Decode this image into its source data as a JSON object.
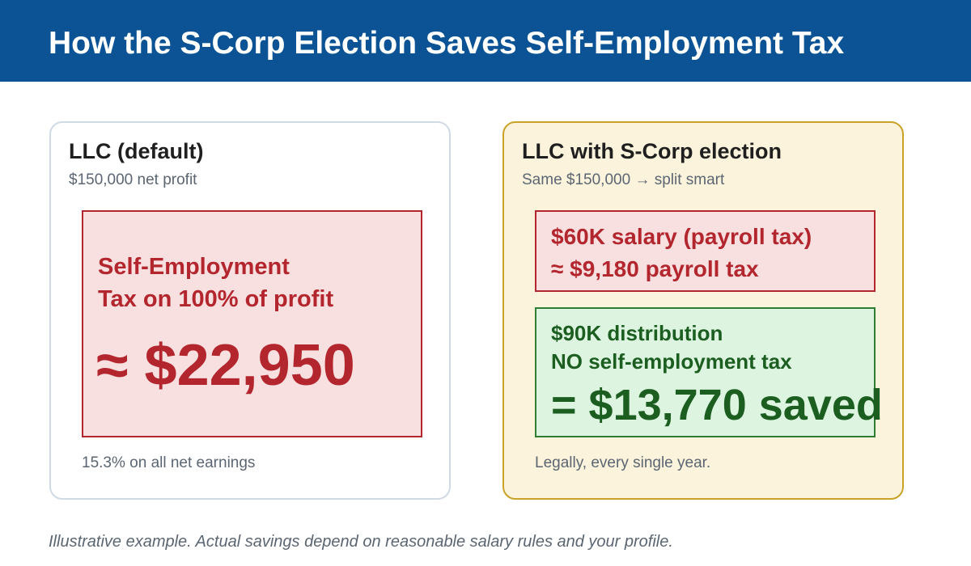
{
  "header": {
    "title": "How the S-Corp Election Saves Self-Employment Tax"
  },
  "left_card": {
    "title": "LLC (default)",
    "subtitle": "$150,000 net profit",
    "box": {
      "label_line1": "Self-Employment",
      "label_line2": "Tax on 100% of profit",
      "value": "≈ $22,950"
    },
    "note": "15.3% on all net earnings"
  },
  "right_card": {
    "title": "LLC with S-Corp election",
    "subtitle": "Same $150,000 → split smart",
    "salary_box": {
      "line1": "$60K salary (payroll tax)",
      "line2": "≈ $9,180 payroll tax"
    },
    "distribution_box": {
      "line1": "$90K distribution",
      "line2": "NO self-employment tax",
      "saved": "= $13,770 saved"
    },
    "note": "Legally, every single year."
  },
  "footnote": "Illustrative example. Actual savings depend on reasonable salary rules and your profile.",
  "colors": {
    "header_bg": "#0b5394",
    "red": "#b3262d",
    "red_bg": "#f8dfe0",
    "green": "#1b5e20",
    "green_bg": "#dcf4e0",
    "gold_border": "#c9a227",
    "gold_bg": "#fbf3dc"
  }
}
